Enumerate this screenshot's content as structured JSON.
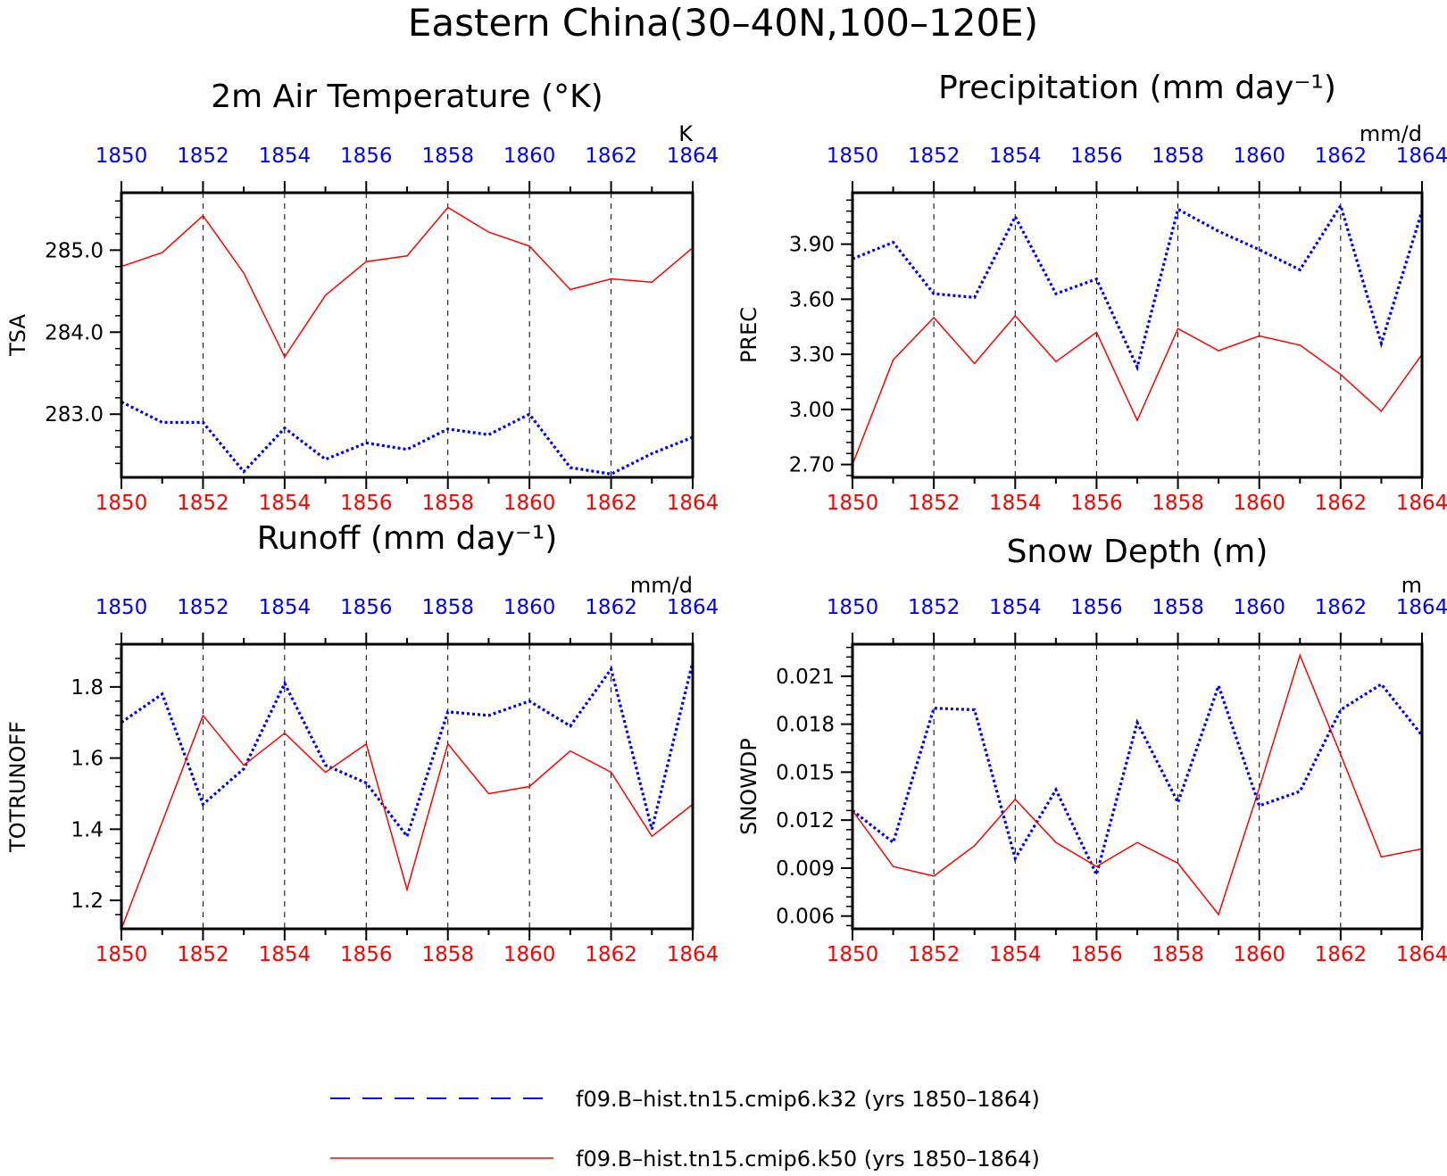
{
  "main_title": "Eastern China(30–40N,100–120E)",
  "legend": [
    {
      "label": "f09.B–hist.tn15.cmip6.k32 (yrs 1850–1864)",
      "color": "#0000ff",
      "style": "dotted"
    },
    {
      "label": "f09.B–hist.tn15.cmip6.k50 (yrs 1850–1864)",
      "color": "#ff0000",
      "style": "solid"
    }
  ],
  "colors": {
    "top_axis": "#0000ff",
    "bottom_axis": "#ff0000",
    "frame": "#000000"
  },
  "chart_data": [
    {
      "type": "line",
      "title": "2m Air Temperature (°K)",
      "ylabel": "TSA",
      "units_label": "K",
      "x": [
        1850,
        1851,
        1852,
        1853,
        1854,
        1855,
        1856,
        1857,
        1858,
        1859,
        1860,
        1861,
        1862,
        1863,
        1864
      ],
      "xlim": [
        1850,
        1864
      ],
      "xticks": [
        1850,
        1852,
        1854,
        1856,
        1858,
        1860,
        1862,
        1864
      ],
      "ylim": [
        282.23,
        285.7
      ],
      "yticks": [
        283.0,
        284.0,
        285.0
      ],
      "ytick_labels": [
        "283.0",
        "284.0",
        "285.0"
      ],
      "series": [
        {
          "values": [
            283.15,
            282.9,
            282.9,
            282.3,
            282.83,
            282.45,
            282.65,
            282.57,
            282.82,
            282.75,
            283.0,
            282.35,
            282.27,
            282.52,
            282.72
          ],
          "color": "#0000ff",
          "style": "dotted"
        },
        {
          "values": [
            284.8,
            284.97,
            285.42,
            284.72,
            283.7,
            284.45,
            284.86,
            284.93,
            285.52,
            285.22,
            285.05,
            284.52,
            284.65,
            284.61,
            285.03
          ],
          "color": "#ff0000",
          "style": "solid"
        }
      ]
    },
    {
      "type": "line",
      "title": "Precipitation (mm day⁻¹)",
      "ylabel": "PREC",
      "units_label": "mm/d",
      "x": [
        1850,
        1851,
        1852,
        1853,
        1854,
        1855,
        1856,
        1857,
        1858,
        1859,
        1860,
        1861,
        1862,
        1863,
        1864
      ],
      "xlim": [
        1850,
        1864
      ],
      "xticks": [
        1850,
        1852,
        1854,
        1856,
        1858,
        1860,
        1862,
        1864
      ],
      "ylim": [
        2.63,
        4.18
      ],
      "yticks": [
        2.7,
        3.0,
        3.3,
        3.6,
        3.9
      ],
      "ytick_labels": [
        "2.70",
        "3.00",
        "3.30",
        "3.60",
        "3.90"
      ],
      "series": [
        {
          "values": [
            3.82,
            3.91,
            3.63,
            3.61,
            4.05,
            3.63,
            3.71,
            3.23,
            4.09,
            3.97,
            3.87,
            3.76,
            4.11,
            3.36,
            4.08
          ],
          "color": "#0000ff",
          "style": "dotted"
        },
        {
          "values": [
            2.7,
            3.27,
            3.5,
            3.25,
            3.51,
            3.26,
            3.42,
            2.94,
            3.44,
            3.32,
            3.4,
            3.35,
            3.19,
            2.99,
            3.3
          ],
          "color": "#ff0000",
          "style": "solid"
        }
      ]
    },
    {
      "type": "line",
      "title": "Runoff (mm day⁻¹)",
      "ylabel": "TOTRUNOFF",
      "units_label": "mm/d",
      "x": [
        1850,
        1851,
        1852,
        1853,
        1854,
        1855,
        1856,
        1857,
        1858,
        1859,
        1860,
        1861,
        1862,
        1863,
        1864
      ],
      "xlim": [
        1850,
        1864
      ],
      "xticks": [
        1850,
        1852,
        1854,
        1856,
        1858,
        1860,
        1862,
        1864
      ],
      "ylim": [
        1.12,
        1.92
      ],
      "yticks": [
        1.2,
        1.4,
        1.6,
        1.8
      ],
      "ytick_labels": [
        "1.2",
        "1.4",
        "1.6",
        "1.8"
      ],
      "series": [
        {
          "values": [
            1.7,
            1.78,
            1.47,
            1.57,
            1.81,
            1.58,
            1.53,
            1.38,
            1.73,
            1.72,
            1.76,
            1.69,
            1.85,
            1.4,
            1.87
          ],
          "color": "#0000ff",
          "style": "dotted"
        },
        {
          "values": [
            1.12,
            1.42,
            1.72,
            1.58,
            1.67,
            1.56,
            1.64,
            1.23,
            1.64,
            1.5,
            1.52,
            1.62,
            1.56,
            1.38,
            1.47
          ],
          "color": "#ff0000",
          "style": "solid"
        }
      ]
    },
    {
      "type": "line",
      "title": "Snow Depth (m)",
      "ylabel": "SNOWDP",
      "units_label": "m",
      "x": [
        1850,
        1851,
        1852,
        1853,
        1854,
        1855,
        1856,
        1857,
        1858,
        1859,
        1860,
        1861,
        1862,
        1863,
        1864
      ],
      "xlim": [
        1850,
        1864
      ],
      "xticks": [
        1850,
        1852,
        1854,
        1856,
        1858,
        1860,
        1862,
        1864
      ],
      "ylim": [
        0.0052,
        0.023
      ],
      "yticks": [
        0.006,
        0.009,
        0.012,
        0.015,
        0.018,
        0.021
      ],
      "ytick_labels": [
        "0.006",
        "0.009",
        "0.012",
        "0.015",
        "0.018",
        "0.021"
      ],
      "series": [
        {
          "values": [
            0.0126,
            0.0106,
            0.019,
            0.0189,
            0.0096,
            0.0139,
            0.0086,
            0.0181,
            0.0131,
            0.0204,
            0.0129,
            0.0138,
            0.0189,
            0.0205,
            0.0173
          ],
          "color": "#0000ff",
          "style": "dotted"
        },
        {
          "values": [
            0.0126,
            0.0091,
            0.0085,
            0.0104,
            0.0133,
            0.0106,
            0.0091,
            0.0106,
            0.0093,
            0.0061,
            0.014,
            0.0223,
            0.0161,
            0.0097,
            0.0102
          ],
          "color": "#ff0000",
          "style": "solid"
        }
      ]
    }
  ]
}
